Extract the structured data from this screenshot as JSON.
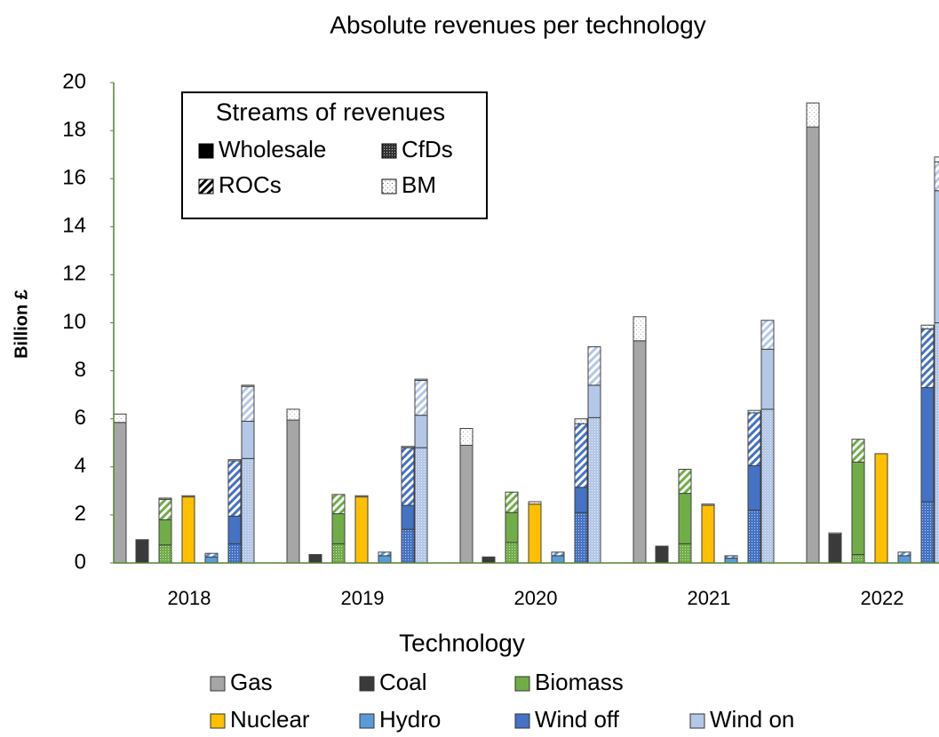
{
  "chart_data": {
    "type": "grouped-stacked-bar",
    "title": "Absolute revenues per technology",
    "x_label": "Technology",
    "y_label": "Billion £",
    "categories": [
      "2018",
      "2019",
      "2020",
      "2021",
      "2022"
    ],
    "ylim": [
      0,
      20
    ],
    "yticks": [
      0,
      2,
      4,
      6,
      8,
      10,
      12,
      14,
      16,
      18,
      20
    ],
    "stream_legend_title": "Streams of revenues",
    "streams": [
      {
        "name": "Wholesale",
        "pattern": "solid"
      },
      {
        "name": "CfDs",
        "pattern": "dense-dots"
      },
      {
        "name": "ROCs",
        "pattern": "hatch"
      },
      {
        "name": "BM",
        "pattern": "sparse-dots"
      }
    ],
    "series": [
      {
        "name": "Gas",
        "color": "#a6a6a6",
        "values": [
          [
            5.85,
            0,
            0,
            0.35
          ],
          [
            5.95,
            0,
            0,
            0.45
          ],
          [
            4.9,
            0,
            0,
            0.7
          ],
          [
            9.25,
            0,
            0,
            1.0
          ],
          [
            18.15,
            0,
            0,
            1.0
          ]
        ]
      },
      {
        "name": "Coal",
        "color": "#3a3a3a",
        "values": [
          [
            0.95,
            0,
            0,
            0.02
          ],
          [
            0.35,
            0,
            0,
            0
          ],
          [
            0.25,
            0,
            0,
            0
          ],
          [
            0.7,
            0,
            0,
            0
          ],
          [
            1.2,
            0,
            0,
            0.05
          ]
        ]
      },
      {
        "name": "Biomass",
        "color": "#70ad47",
        "values": [
          [
            1.05,
            0.75,
            0.85,
            0.05
          ],
          [
            1.25,
            0.8,
            0.8,
            0
          ],
          [
            1.25,
            0.85,
            0.85,
            0
          ],
          [
            2.1,
            0.8,
            1.0,
            0
          ],
          [
            3.85,
            0.35,
            0.95,
            0
          ]
        ]
      },
      {
        "name": "Nuclear",
        "color": "#ffc000",
        "values": [
          [
            2.75,
            0,
            0,
            0.05
          ],
          [
            2.75,
            0,
            0,
            0.05
          ],
          [
            2.45,
            0,
            0,
            0.1
          ],
          [
            2.4,
            0,
            0,
            0.05
          ],
          [
            4.55,
            0,
            0,
            0
          ]
        ]
      },
      {
        "name": "Hydro",
        "color": "#5b9bd5",
        "values": [
          [
            0.25,
            0,
            0.15,
            0
          ],
          [
            0.3,
            0,
            0.15,
            0
          ],
          [
            0.3,
            0,
            0.15,
            0
          ],
          [
            0.2,
            0,
            0.1,
            0
          ],
          [
            0.3,
            0,
            0.15,
            0
          ]
        ]
      },
      {
        "name": "Wind off",
        "color": "#4472c4",
        "values": [
          [
            1.15,
            0.8,
            2.3,
            0.05
          ],
          [
            1.0,
            1.4,
            2.4,
            0.05
          ],
          [
            1.05,
            2.1,
            2.65,
            0.2
          ],
          [
            1.85,
            2.2,
            2.2,
            0.1
          ],
          [
            4.75,
            2.55,
            2.45,
            0.15
          ]
        ]
      },
      {
        "name": "Wind on",
        "color": "#b4c7e7",
        "values": [
          [
            1.55,
            4.35,
            1.45,
            0.05
          ],
          [
            1.35,
            4.8,
            1.45,
            0.05
          ],
          [
            1.35,
            6.05,
            1.6,
            0
          ],
          [
            2.5,
            6.4,
            1.2,
            0
          ],
          [
            5.5,
            10.0,
            1.2,
            0.2
          ]
        ]
      }
    ]
  }
}
